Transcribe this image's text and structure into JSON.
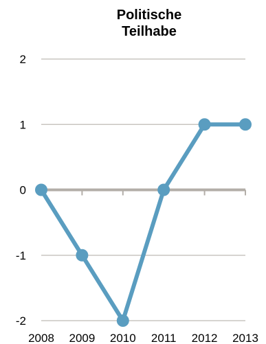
{
  "chart_data": {
    "type": "line",
    "title_lines": [
      "Politische",
      "Teilhabe"
    ],
    "xlabel": "",
    "ylabel": "",
    "x": [
      "2008",
      "2009",
      "2010",
      "2011",
      "2012",
      "2013"
    ],
    "series": [
      {
        "values": [
          0,
          -1,
          -2,
          0,
          1,
          1
        ]
      }
    ],
    "ylim": [
      -2,
      2
    ],
    "yticks": [
      "2",
      "1",
      "0",
      "-1",
      "-2"
    ],
    "grid": true,
    "legend": "none",
    "colors": {
      "series": "#5a9dc0",
      "grid": "#c8c5c0",
      "zero_line": "#b3aea8"
    }
  }
}
